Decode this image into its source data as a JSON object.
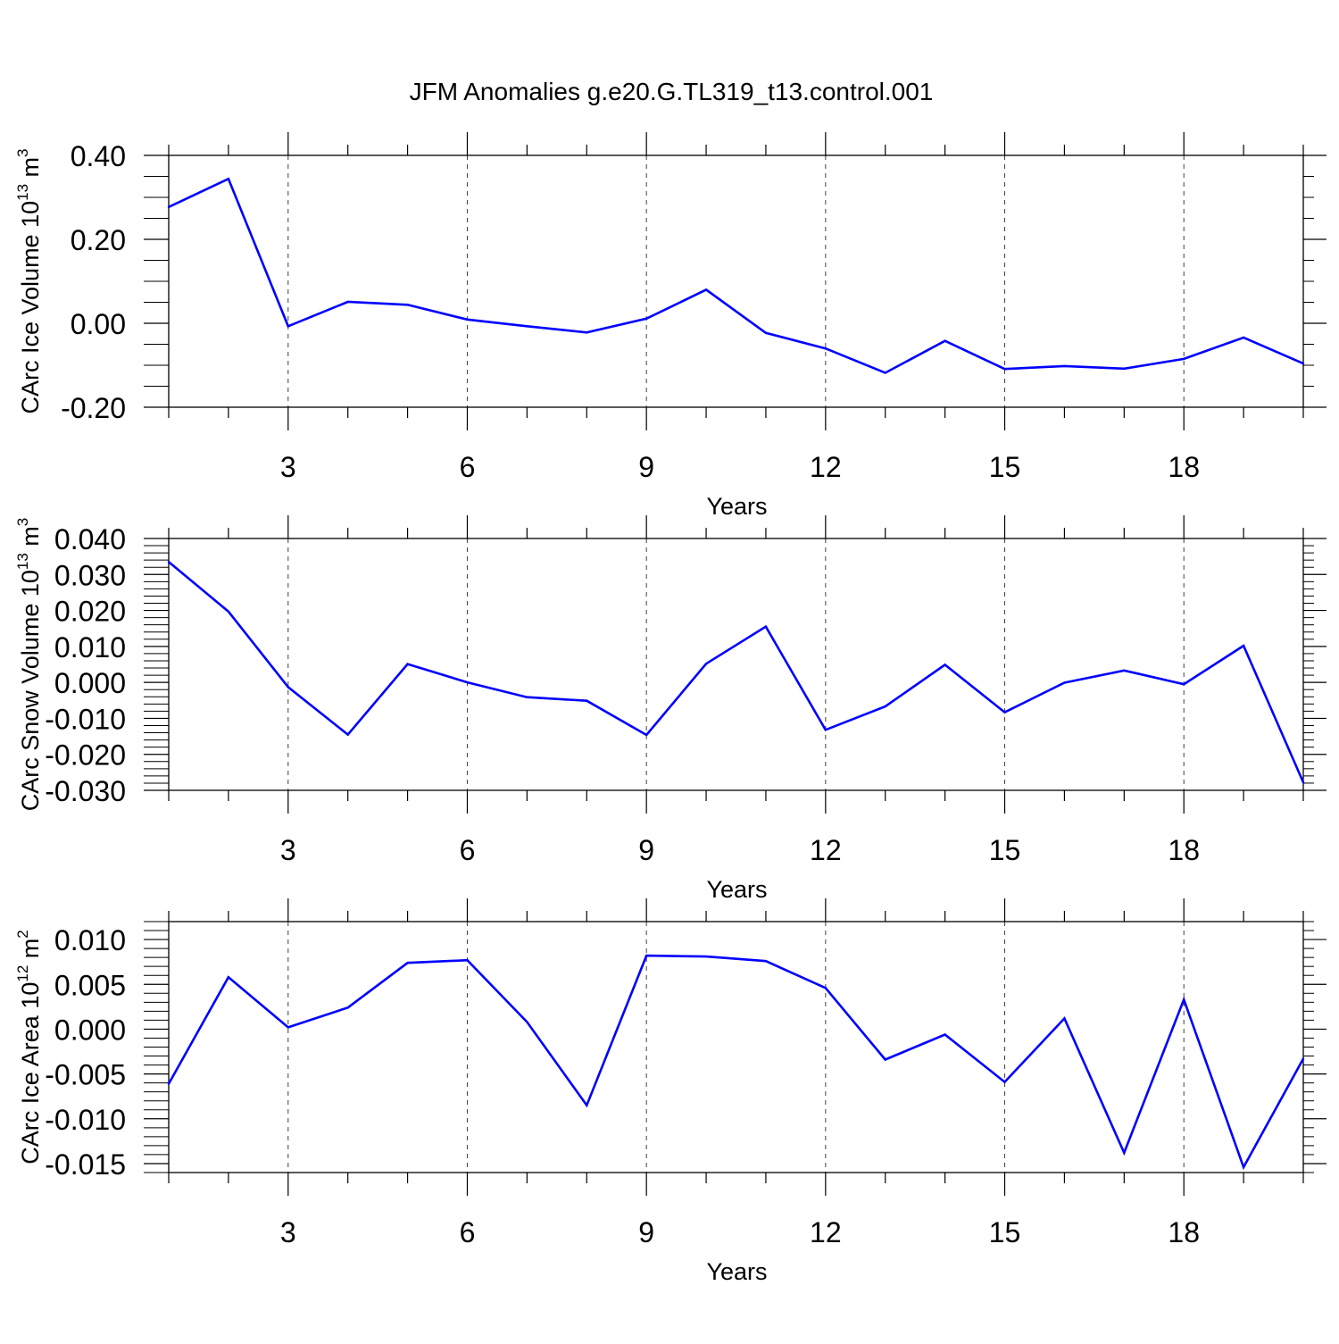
{
  "title": "JFM Anomalies g.e20.G.TL319_t13.control.001",
  "colors": {
    "line": "#0000ff",
    "axis": "#000000",
    "grid": "#000000",
    "background": "#ffffff"
  },
  "chart_data": [
    {
      "type": "line",
      "ylabel": {
        "text": "CArc Ice Volume 10",
        "exp": "13",
        "unit": " m",
        "unit_exp": "3"
      },
      "xlabel": "Years",
      "xlim": [
        1,
        20
      ],
      "ylim": [
        -0.2,
        0.4
      ],
      "xticks": [
        3,
        6,
        9,
        12,
        15,
        18
      ],
      "xtick_labels": [
        "3",
        "6",
        "9",
        "12",
        "15",
        "18"
      ],
      "yticks": [
        -0.2,
        0.0,
        0.2,
        0.4
      ],
      "ytick_labels": [
        "-0.20",
        "0.00",
        "0.20",
        "0.40"
      ],
      "yminor_step": 0.05,
      "grid": "x-dashed",
      "x": [
        1,
        2,
        3,
        4,
        5,
        6,
        7,
        8,
        9,
        10,
        11,
        12,
        13,
        14,
        15,
        16,
        17,
        18,
        19,
        20
      ],
      "values": [
        0.277,
        0.344,
        -0.007,
        0.051,
        0.044,
        0.009,
        -0.007,
        -0.022,
        0.011,
        0.08,
        -0.023,
        -0.06,
        -0.118,
        -0.042,
        -0.109,
        -0.102,
        -0.108,
        -0.085,
        -0.034,
        -0.096
      ]
    },
    {
      "type": "line",
      "ylabel": {
        "text": "CArc Snow Volume 10",
        "exp": "13",
        "unit": " m",
        "unit_exp": "3"
      },
      "xlabel": "Years",
      "xlim": [
        1,
        20
      ],
      "ylim": [
        -0.03,
        0.04
      ],
      "xticks": [
        3,
        6,
        9,
        12,
        15,
        18
      ],
      "xtick_labels": [
        "3",
        "6",
        "9",
        "12",
        "15",
        "18"
      ],
      "yticks": [
        -0.03,
        -0.02,
        -0.01,
        0.0,
        0.01,
        0.02,
        0.03,
        0.04
      ],
      "ytick_labels": [
        "-0.030",
        "-0.020",
        "-0.010",
        "0.000",
        "0.010",
        "0.020",
        "0.030",
        "0.040"
      ],
      "yminor_step": 0.002,
      "grid": "x-dashed",
      "x": [
        1,
        2,
        3,
        4,
        5,
        6,
        7,
        8,
        9,
        10,
        11,
        12,
        13,
        14,
        15,
        16,
        17,
        18,
        19,
        20
      ],
      "values": [
        0.0335,
        0.0197,
        -0.0013,
        -0.0145,
        0.0051,
        0.0,
        -0.0041,
        -0.0051,
        -0.0146,
        0.0052,
        0.0155,
        -0.0132,
        -0.0067,
        0.0049,
        -0.0083,
        -0.0001,
        0.0033,
        -0.0005,
        0.0102,
        -0.0278
      ]
    },
    {
      "type": "line",
      "ylabel": {
        "text": "CArc Ice Area 10",
        "exp": "12",
        "unit": " m",
        "unit_exp": "2"
      },
      "xlabel": "Years",
      "xlim": [
        1,
        20
      ],
      "ylim": [
        -0.016,
        0.012
      ],
      "xticks": [
        3,
        6,
        9,
        12,
        15,
        18
      ],
      "xtick_labels": [
        "3",
        "6",
        "9",
        "12",
        "15",
        "18"
      ],
      "yticks": [
        -0.015,
        -0.01,
        -0.005,
        0.0,
        0.005,
        0.01
      ],
      "ytick_labels": [
        "-0.015",
        "-0.010",
        "-0.005",
        "0.000",
        "0.005",
        "0.010"
      ],
      "yminor_step": 0.001,
      "grid": "x-dashed",
      "x": [
        1,
        2,
        3,
        4,
        5,
        6,
        7,
        8,
        9,
        10,
        11,
        12,
        13,
        14,
        15,
        16,
        17,
        18,
        19,
        20
      ],
      "values": [
        -0.0061,
        0.0058,
        0.0002,
        0.0024,
        0.0074,
        0.0077,
        0.0008,
        -0.0085,
        0.0082,
        0.0081,
        0.0076,
        0.0046,
        -0.0034,
        -0.0006,
        -0.0059,
        0.0012,
        -0.0138,
        0.0033,
        -0.0154,
        -0.0033
      ]
    }
  ]
}
